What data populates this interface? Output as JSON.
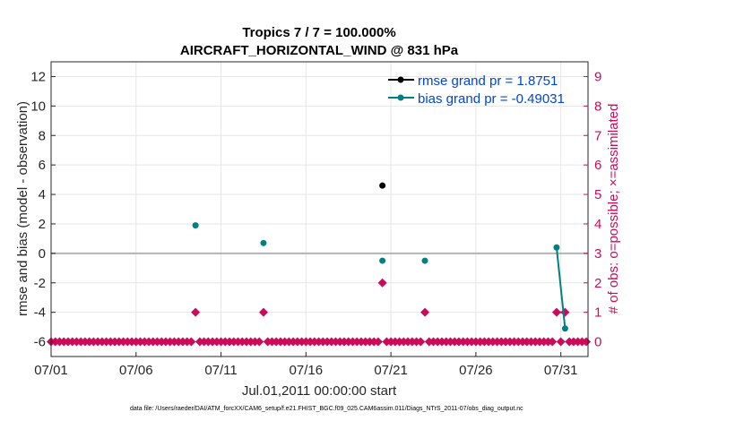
{
  "chart_data": {
    "type": "scatter",
    "title_line1": "Tropics 7 / 7 = 100.000%",
    "title_line2": "AIRCRAFT_HORIZONTAL_WIND @ 831 hPa",
    "xlabel": "Jul.01,2011 00:00:00 start",
    "ylabel_left": "rmse and bias (model - observation)",
    "ylabel_right": "# of obs: o=possible; ×=assimilated",
    "xlim": [
      0,
      31.6
    ],
    "ylim_left": [
      -7,
      13
    ],
    "ylim_right": [
      -0.5,
      9.5
    ],
    "x_ticks": [
      0,
      5,
      10,
      15,
      20,
      25,
      30
    ],
    "x_tick_labels": [
      "07/01",
      "07/06",
      "07/11",
      "07/16",
      "07/21",
      "07/26",
      "07/31"
    ],
    "y_left_ticks": [
      -6,
      -4,
      -2,
      0,
      2,
      4,
      6,
      8,
      10,
      12
    ],
    "y_left_tick_labels": [
      "-6",
      "-4",
      "-2",
      "0",
      "2",
      "4",
      "6",
      "8",
      "10",
      "12"
    ],
    "y_right_ticks": [
      0,
      1,
      2,
      3,
      4,
      5,
      6,
      7,
      8,
      9
    ],
    "y_right_tick_labels": [
      "0",
      "1",
      "2",
      "3",
      "4",
      "5",
      "6",
      "7",
      "8",
      "9"
    ],
    "grid": true,
    "zero_line": 0,
    "legend_position": "top-right",
    "series": [
      {
        "name": "rmse grand pr = 1.8751",
        "axis": "left",
        "color": "#000000",
        "marker": "circle",
        "points": [
          [
            19.5,
            4.6
          ]
        ]
      },
      {
        "name": "bias grand pr = -0.49031",
        "axis": "left",
        "color": "#008080",
        "marker": "circle",
        "points": [
          [
            8.5,
            1.9
          ],
          [
            12.5,
            0.7
          ],
          [
            19.5,
            -0.5
          ],
          [
            22.0,
            -0.5
          ],
          [
            29.75,
            0.4
          ],
          [
            30.25,
            -5.1
          ]
        ],
        "connected": [
          [
            4,
            5
          ]
        ]
      },
      {
        "name": "obs possible/assimilated count",
        "axis": "right",
        "color": "#cc0a5a",
        "marker": "diamond",
        "nonzero": [
          [
            8.5,
            1
          ],
          [
            12.5,
            1
          ],
          [
            19.5,
            2
          ],
          [
            22.0,
            1
          ],
          [
            29.75,
            1
          ],
          [
            30.25,
            1
          ]
        ],
        "zero_start": 0,
        "zero_end": 31.5,
        "zero_step": 0.25
      }
    ],
    "footer": "data file: /Users/raeder/DAI/ATM_forcXX/CAM6_setup/f.e21.FHIST_BGC.f09_025.CAM6assim.011/Diags_NTrS_2011-07/obs_diag_output.nc"
  }
}
